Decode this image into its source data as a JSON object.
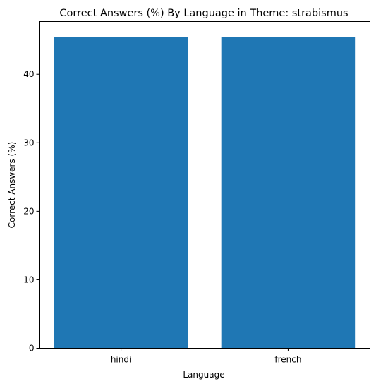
{
  "chart_data": {
    "type": "bar",
    "title": "Correct Answers (%) By Language in Theme: strabismus",
    "xlabel": "Language",
    "ylabel": "Correct Answers (%)",
    "categories": [
      "hindi",
      "french"
    ],
    "values": [
      45.45,
      45.45
    ],
    "ylim": [
      0,
      47.7
    ],
    "yticks": [
      0,
      10,
      20,
      30,
      40
    ],
    "bar_color": "#1f77b4",
    "grid": false,
    "legend": "none"
  }
}
